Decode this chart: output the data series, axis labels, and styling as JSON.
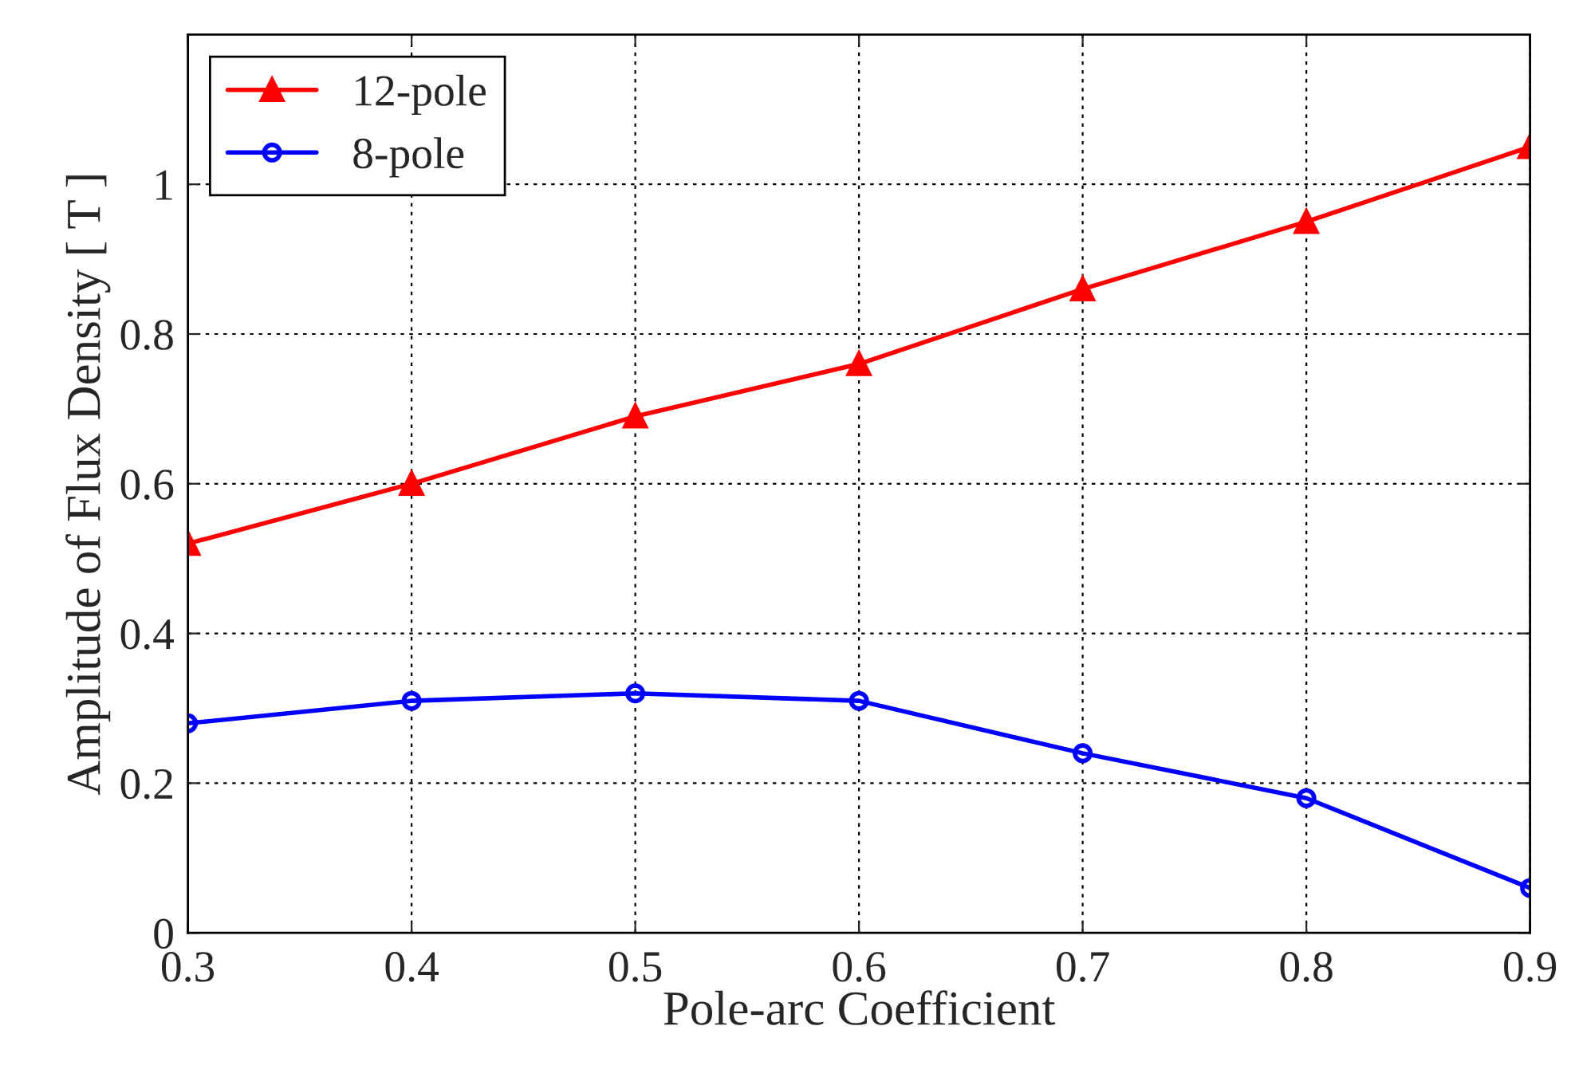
{
  "chart_data": {
    "type": "line",
    "xlabel": "Pole-arc Coefficient",
    "ylabel": "Amplitude of Flux Density [ T ]",
    "x": [
      0.3,
      0.4,
      0.5,
      0.6,
      0.7,
      0.8,
      0.9
    ],
    "series": [
      {
        "name": "12-pole",
        "color": "#ff0000",
        "marker": "triangle",
        "values": [
          0.52,
          0.6,
          0.69,
          0.76,
          0.86,
          0.95,
          1.05
        ]
      },
      {
        "name": "8-pole",
        "color": "#0000ff",
        "marker": "circle",
        "values": [
          0.28,
          0.31,
          0.32,
          0.31,
          0.24,
          0.18,
          0.06
        ]
      }
    ],
    "xlim": [
      0.3,
      0.9
    ],
    "xticks": [
      0.3,
      0.4,
      0.5,
      0.6,
      0.7,
      0.8,
      0.9
    ],
    "ylim": [
      0,
      1.2
    ],
    "yticks": [
      0,
      0.2,
      0.4,
      0.6,
      0.8,
      1
    ],
    "grid": true,
    "legend": "top left",
    "line_style": "solid"
  }
}
